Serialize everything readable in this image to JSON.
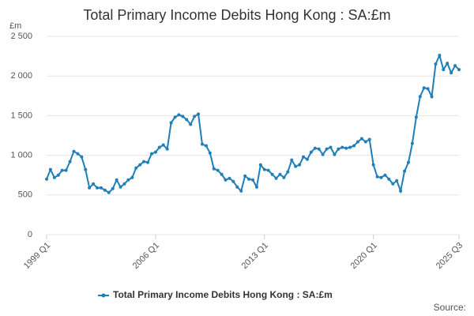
{
  "chart_data": {
    "type": "line",
    "title": "Total Primary Income Debits Hong Kong : SA:£m",
    "y_label": "£m",
    "source": "Source:",
    "categories": [
      "1999 Q1",
      null,
      null,
      null,
      null,
      null,
      null,
      null,
      null,
      null,
      null,
      null,
      null,
      null,
      null,
      null,
      null,
      null,
      null,
      null,
      null,
      null,
      null,
      null,
      null,
      null,
      null,
      null,
      "2006 Q1",
      null,
      null,
      null,
      null,
      null,
      null,
      null,
      null,
      null,
      null,
      null,
      null,
      null,
      null,
      null,
      null,
      null,
      null,
      null,
      null,
      null,
      null,
      null,
      null,
      null,
      null,
      null,
      "2013 Q1",
      null,
      null,
      null,
      null,
      null,
      null,
      null,
      null,
      null,
      null,
      null,
      null,
      null,
      null,
      null,
      null,
      null,
      null,
      null,
      null,
      null,
      null,
      null,
      null,
      null,
      null,
      null,
      "2020 Q1",
      null,
      null,
      null,
      null,
      null,
      null,
      null,
      null,
      null,
      null,
      null,
      null,
      null,
      null,
      null,
      null,
      null,
      null,
      null,
      null,
      null,
      "2025 Q3"
    ],
    "series": [
      {
        "name": "Total Primary Income Debits Hong Kong : SA:£m",
        "color": "#1f7fb8",
        "values": [
          700,
          820,
          720,
          750,
          810,
          810,
          920,
          1050,
          1020,
          980,
          820,
          590,
          640,
          590,
          590,
          560,
          530,
          580,
          690,
          600,
          640,
          690,
          720,
          840,
          880,
          920,
          910,
          1020,
          1040,
          1100,
          1130,
          1080,
          1410,
          1480,
          1510,
          1490,
          1450,
          1390,
          1490,
          1520,
          1140,
          1120,
          1030,
          830,
          810,
          760,
          690,
          710,
          670,
          600,
          550,
          740,
          700,
          690,
          600,
          880,
          820,
          810,
          760,
          710,
          760,
          720,
          790,
          940,
          860,
          880,
          980,
          950,
          1040,
          1090,
          1080,
          1010,
          1080,
          1100,
          1010,
          1080,
          1100,
          1090,
          1100,
          1120,
          1170,
          1210,
          1170,
          1200,
          880,
          730,
          720,
          750,
          700,
          640,
          680,
          550,
          800,
          910,
          1150,
          1480,
          1740,
          1850,
          1840,
          1740,
          2150,
          2260,
          2080,
          2160,
          2040,
          2130,
          2080
        ]
      }
    ],
    "ylim": [
      0,
      2500
    ],
    "yticks": [
      0,
      500,
      {
        "value": 1000,
        "label": "1 000"
      },
      {
        "value": 1500,
        "label": "1 500"
      },
      {
        "value": 2000,
        "label": "2 000"
      },
      {
        "value": 2500,
        "label": "2 500"
      }
    ],
    "grid": true
  }
}
